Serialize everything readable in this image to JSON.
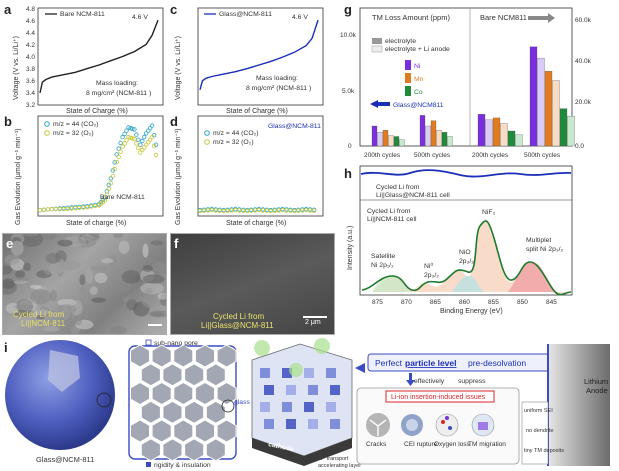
{
  "panels": {
    "a": {
      "letter": "a",
      "legend": "Bare NCM-811",
      "voltage": "4.6 V",
      "loading_line1": "Mass loading:",
      "loading_line2": "8 mg/cm² (NCM-811 )",
      "xlabel": "State of Charge (%)",
      "ylabel": "Voltage (V vs. Li/Li⁺)"
    },
    "b": {
      "letter": "b",
      "legend_co2": "m/z = 44 (CO₂)",
      "legend_o2": "m/z = 32 (O₂)",
      "label": "Bare NCM-811",
      "xlabel": "State of charge (%)",
      "ylabel": "Gas Evolution (µmol g⁻¹ min⁻¹)"
    },
    "c": {
      "letter": "c",
      "legend": "Glass@NCM-811",
      "voltage": "4.6 V",
      "loading_line1": "Mass loading:",
      "loading_line2": "8 mg/cm² (NCM-811 )",
      "xlabel": "State of Charge (%)",
      "ylabel": "Voltage (V vs. Li/Li⁺)"
    },
    "d": {
      "letter": "d",
      "title": "Glass@NCM-811",
      "legend_co2": "m/z = 44 (CO₂)",
      "legend_o2": "m/z = 32 (O₂)",
      "xlabel": "State of charge (%)",
      "ylabel": "Gas Evolution (µmol g⁻¹ min⁻¹)"
    },
    "e": {
      "letter": "e",
      "caption_line1": "Cycled Li from",
      "caption_line2": "Li||NCM-811"
    },
    "f": {
      "letter": "f",
      "caption_line1": "Cycled Li from",
      "caption_line2": "Li||Glass@NCM-811",
      "scalebar": "2 μm"
    },
    "g": {
      "letter": "g",
      "title": "TM Loss Amount (ppm)",
      "legend_a": "electrolyte",
      "legend_b": "electrolyte + Li anode",
      "ni": "Ni",
      "mn": "Mn",
      "co": "Co",
      "bare_label": "Bare NCM811",
      "glass_label": "Glass@NCM811",
      "groups": [
        "200th cycles",
        "500th cycles",
        "200th cycles",
        "500th cycles"
      ]
    },
    "h": {
      "letter": "h",
      "top_label_line1": "Cycled Li  from",
      "top_label_line2": "Li||Glass@NCM-811 cell",
      "bottom_label_line1": "Cycled Li  from",
      "bottom_label_line2": "Li||NCM-811 cell",
      "peak_satellite_line1": "Satellite",
      "peak_satellite_line2": "Ni 2p₁/₂",
      "peak_ni0_line1": "Ni⁰",
      "peak_ni0_line2": "2p₃/₂",
      "peak_nio_line1": "NiO",
      "peak_nio_line2": "2p₃/₂",
      "peak_nif2": "NiF₂",
      "peak_mult_line1": "Multiplet",
      "peak_mult_line2": "split Ni 2p₃/₂",
      "xlabel": "Binding Energy (eV)",
      "ylabel": "Intensity (a.u.)"
    },
    "i": {
      "letter": "i",
      "sphere_label": "Glass@NCM-811",
      "pore_label": "sub-nano pore",
      "rigidity_label": "rigidity & insulation",
      "glass_label": "glass",
      "cathode_label": "cathode",
      "transport_line1": "Li⁺ transport",
      "transport_line2": "accelerating layer",
      "perfect_prefix": "Perfect",
      "perfect_bold": "particle level",
      "perfect_suffix": "pre-desolvation",
      "effectively": "effectively",
      "suppress": "suppress",
      "issues_title": "Li-ion insertion-induced issues",
      "issue_items": [
        "Cracks",
        "CEI rupture",
        "Oxygen loss",
        "TM migration"
      ],
      "anode_line1": "Lithium",
      "anode_line2": "Anode",
      "anode_notes": [
        "uniform SEI",
        "no dendrite",
        "tiny TM deposits"
      ]
    }
  },
  "chart_data": [
    {
      "panel": "a",
      "type": "line",
      "title": "",
      "xlabel": "State of Charge (%)",
      "ylabel": "Voltage (V vs. Li/Li⁺)",
      "xlim": [
        0,
        100
      ],
      "ylim": [
        3.2,
        4.8
      ],
      "series": [
        {
          "name": "Bare NCM-811",
          "color": "#222222",
          "x": [
            0,
            2,
            5,
            10,
            20,
            30,
            40,
            50,
            60,
            70,
            80,
            90,
            95,
            100
          ],
          "y": [
            3.4,
            3.58,
            3.62,
            3.66,
            3.7,
            3.74,
            3.8,
            3.86,
            3.93,
            4.0,
            4.08,
            4.2,
            4.35,
            4.6
          ]
        }
      ]
    },
    {
      "panel": "b",
      "type": "scatter",
      "title": "",
      "xlabel": "State of charge (%)",
      "ylabel": "Gas Evolution (µmol g⁻¹ min⁻¹)",
      "xlim": [
        0,
        100
      ],
      "ylim": [
        0,
        1.0
      ],
      "series": [
        {
          "name": "m/z = 44 (CO₂)",
          "color": "#2fa6c9",
          "x": [
            0,
            10,
            20,
            30,
            40,
            50,
            55,
            60,
            65,
            70,
            75,
            80,
            85,
            90,
            95,
            100
          ],
          "y": [
            0.02,
            0.03,
            0.04,
            0.05,
            0.06,
            0.08,
            0.15,
            0.35,
            0.6,
            0.78,
            0.88,
            0.86,
            0.7,
            0.82,
            0.9,
            0.6
          ]
        },
        {
          "name": "m/z = 32 (O₂)",
          "color": "#c8c83a",
          "x": [
            0,
            10,
            20,
            30,
            40,
            50,
            55,
            60,
            65,
            70,
            75,
            80,
            85,
            90,
            95,
            100
          ],
          "y": [
            0.02,
            0.03,
            0.03,
            0.04,
            0.05,
            0.07,
            0.12,
            0.3,
            0.52,
            0.68,
            0.78,
            0.76,
            0.62,
            0.7,
            0.78,
            0.5
          ]
        }
      ]
    },
    {
      "panel": "c",
      "type": "line",
      "title": "",
      "xlabel": "State of Charge (%)",
      "ylabel": "Voltage (V vs. Li/Li⁺)",
      "xlim": [
        0,
        100
      ],
      "ylim": [
        3.2,
        4.8
      ],
      "series": [
        {
          "name": "Glass@NCM-811",
          "color": "#1a2fb8",
          "x": [
            0,
            2,
            5,
            10,
            20,
            30,
            40,
            50,
            60,
            70,
            80,
            90,
            95,
            100
          ],
          "y": [
            3.45,
            3.6,
            3.64,
            3.67,
            3.71,
            3.75,
            3.8,
            3.86,
            3.92,
            3.99,
            4.07,
            4.18,
            4.3,
            4.6
          ]
        }
      ]
    },
    {
      "panel": "d",
      "type": "scatter",
      "title": "",
      "xlabel": "State of charge (%)",
      "ylabel": "Gas Evolution (µmol g⁻¹ min⁻¹)",
      "xlim": [
        0,
        100
      ],
      "ylim": [
        0,
        1.0
      ],
      "series": [
        {
          "name": "m/z = 44 (CO₂)",
          "color": "#2fa6c9",
          "x": [
            0,
            10,
            20,
            30,
            40,
            50,
            60,
            70,
            80,
            90,
            100
          ],
          "y": [
            0.02,
            0.03,
            0.02,
            0.03,
            0.02,
            0.03,
            0.02,
            0.03,
            0.02,
            0.03,
            0.02
          ]
        },
        {
          "name": "m/z = 32 (O₂)",
          "color": "#c8c83a",
          "x": [
            0,
            10,
            20,
            30,
            40,
            50,
            60,
            70,
            80,
            90,
            100
          ],
          "y": [
            0.01,
            0.02,
            0.01,
            0.02,
            0.01,
            0.02,
            0.01,
            0.02,
            0.01,
            0.02,
            0.01
          ]
        }
      ]
    },
    {
      "panel": "g",
      "type": "bar",
      "title": "TM Loss Amount (ppm)",
      "categories": [
        "200th cycles",
        "500th cycles",
        "200th cycles",
        "500th cycles"
      ],
      "y_left_ticks": [
        "0",
        "5.0k",
        "10.0k"
      ],
      "y_right_ticks": [
        "0.0",
        "20.0k",
        "40.0k",
        "60.0k"
      ],
      "series": [
        {
          "name": "Ni electrolyte",
          "color": "#7a2ee0",
          "values": [
            1.9,
            2.9,
            17,
            53
          ]
        },
        {
          "name": "Ni electrolyte + Li anode",
          "color": "#d9cdf5",
          "values": [
            1.3,
            1.9,
            14,
            47
          ]
        },
        {
          "name": "Mn electrolyte",
          "color": "#e07b1f",
          "values": [
            1.5,
            2.4,
            15,
            40
          ]
        },
        {
          "name": "Mn electrolyte + Li anode",
          "color": "#f7dcc3",
          "values": [
            1.0,
            1.5,
            12,
            35
          ]
        },
        {
          "name": "Co electrolyte",
          "color": "#1f8a3a",
          "values": [
            0.9,
            1.3,
            8,
            20
          ]
        },
        {
          "name": "Co electrolyte + Li anode",
          "color": "#c8e8cf",
          "values": [
            0.6,
            0.9,
            6,
            16
          ]
        }
      ]
    },
    {
      "panel": "h",
      "type": "line",
      "title": "",
      "xlabel": "Binding Energy (eV)",
      "ylabel": "Intensity (a.u.)",
      "xlim": [
        880,
        845
      ],
      "x_ticks": [
        "875",
        "870",
        "865",
        "860",
        "855",
        "850",
        "845"
      ],
      "series": [
        {
          "name": "Cycled Li from Li||NCM-811 cell",
          "color": "#1f7a2e"
        },
        {
          "name": "Cycled Li from Li||Glass@NCM-811 cell",
          "color": "#1a2fb8"
        }
      ]
    }
  ],
  "colors": {
    "blue": "#1a2fb8",
    "co2": "#2fa6c9",
    "o2": "#c8c83a",
    "ni": "#7a2ee0",
    "mn": "#e07b1f",
    "co": "#1f8a3a",
    "red": "#d9262b"
  }
}
